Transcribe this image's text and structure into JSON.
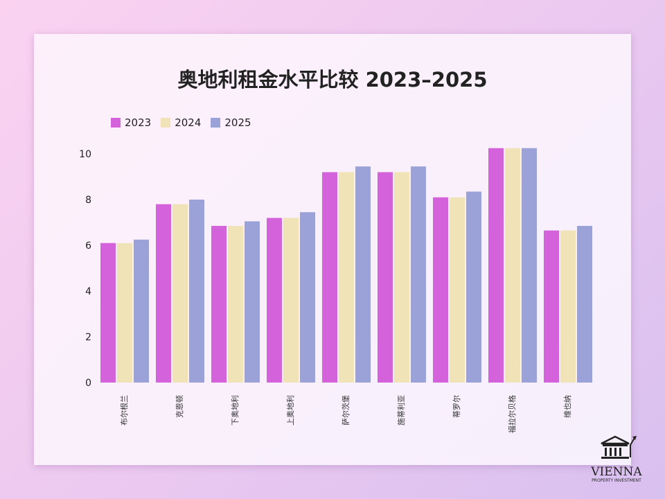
{
  "chart_data": {
    "type": "bar",
    "title": "奥地利租金水平比较 2023–2025",
    "categories": [
      "布尔根兰",
      "克恩顿",
      "下奥地利",
      "上奥地利",
      "萨尔茨堡",
      "施蒂利亚",
      "蒂罗尔",
      "福拉尔贝格",
      "维也纳"
    ],
    "series": [
      {
        "name": "2023",
        "color": "#d463db",
        "values": [
          6.1,
          7.8,
          6.85,
          7.2,
          9.2,
          9.2,
          8.1,
          10.25,
          6.65
        ]
      },
      {
        "name": "2024",
        "color": "#f0e3b8",
        "values": [
          6.1,
          7.8,
          6.85,
          7.2,
          9.2,
          9.2,
          8.1,
          10.25,
          6.65
        ]
      },
      {
        "name": "2025",
        "color": "#9aa2d8",
        "values": [
          6.25,
          8.0,
          7.05,
          7.45,
          9.45,
          9.45,
          8.35,
          10.25,
          6.85
        ]
      }
    ],
    "yticks": [
      0,
      2,
      4,
      6,
      8,
      10
    ],
    "ylim": [
      0,
      10.5
    ],
    "xlabel": "",
    "ylabel": "",
    "grid": false,
    "legend_position": "top-left"
  },
  "logo": {
    "name": "VIENNA",
    "tagline": "PROPERTY INVESTMENT",
    "icon": "bank-chart-icon"
  }
}
